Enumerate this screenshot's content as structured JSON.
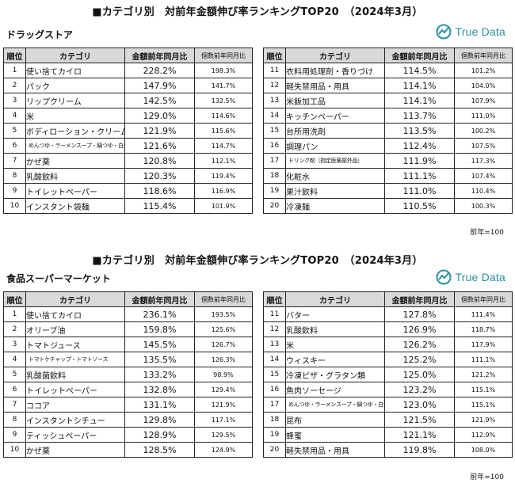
{
  "sections": [
    {
      "title": "■カテゴリ別　対前年金額伸び率ランキングTOP20　（2024年3月）",
      "category": "ドラッグストア",
      "brand": "True Data",
      "headers": {
        "rank": "順位",
        "category": "カテゴリ",
        "amount": "金額前年同月比",
        "count": "個数前年同月比"
      },
      "rows_left": [
        {
          "rank": "1",
          "name": "使い捨てカイロ",
          "amount": "228.2%",
          "count": "198.3%"
        },
        {
          "rank": "2",
          "name": "パック",
          "amount": "147.9%",
          "count": "141.7%"
        },
        {
          "rank": "3",
          "name": "リップクリーム",
          "amount": "142.5%",
          "count": "132.5%"
        },
        {
          "rank": "4",
          "name": "米",
          "amount": "129.0%",
          "count": "114.6%"
        },
        {
          "rank": "5",
          "name": "ボディローション・クリーム",
          "amount": "121.9%",
          "count": "115.6%"
        },
        {
          "rank": "6",
          "name": "めんつゆ・ラーメンスープ・鍋つゆ・白だし",
          "amount": "121.6%",
          "count": "114.7%",
          "tiny": true
        },
        {
          "rank": "7",
          "name": "かぜ薬",
          "amount": "120.8%",
          "count": "112.1%"
        },
        {
          "rank": "8",
          "name": "乳酸飲料",
          "amount": "120.3%",
          "count": "119.4%"
        },
        {
          "rank": "9",
          "name": "トイレットペーパー",
          "amount": "118.6%",
          "count": "116.9%"
        },
        {
          "rank": "10",
          "name": "インスタント袋麺",
          "amount": "115.4%",
          "count": "101.9%"
        }
      ],
      "rows_right": [
        {
          "rank": "11",
          "name": "衣料用処理剤・香りづけ",
          "amount": "114.5%",
          "count": "101.2%"
        },
        {
          "rank": "12",
          "name": "軽失禁用品・用具",
          "amount": "114.1%",
          "count": "104.0%"
        },
        {
          "rank": "13",
          "name": "米飯加工品",
          "amount": "114.1%",
          "count": "107.9%"
        },
        {
          "rank": "14",
          "name": "キッチンペーパー",
          "amount": "113.7%",
          "count": "111.0%"
        },
        {
          "rank": "15",
          "name": "台所用洗剤",
          "amount": "113.5%",
          "count": "100.2%"
        },
        {
          "rank": "16",
          "name": "調理パン",
          "amount": "112.4%",
          "count": "107.5%"
        },
        {
          "rank": "17",
          "name": "ドリンク剤（指定医薬部外品）",
          "amount": "111.9%",
          "count": "117.3%",
          "tiny": true
        },
        {
          "rank": "18",
          "name": "化粧水",
          "amount": "111.1%",
          "count": "107.4%"
        },
        {
          "rank": "19",
          "name": "果汁飲料",
          "amount": "111.0%",
          "count": "110.4%"
        },
        {
          "rank": "20",
          "name": "冷凍麺",
          "amount": "110.5%",
          "count": "100.3%"
        }
      ],
      "note": "前年=100"
    },
    {
      "title": "■カテゴリ別　対前年金額伸び率ランキングTOP20　（2024年3月）",
      "category": "食品スーパーマーケット",
      "brand": "True Data",
      "headers": {
        "rank": "順位",
        "category": "カテゴリ",
        "amount": "金額前年同月比",
        "count": "個数前年同月比"
      },
      "rows_left": [
        {
          "rank": "1",
          "name": "使い捨てカイロ",
          "amount": "236.1%",
          "count": "193.5%"
        },
        {
          "rank": "2",
          "name": "オリーブ油",
          "amount": "159.8%",
          "count": "125.6%"
        },
        {
          "rank": "3",
          "name": "トマトジュース",
          "amount": "145.5%",
          "count": "126.7%"
        },
        {
          "rank": "4",
          "name": "トマトケチャップ・トマトソース",
          "amount": "135.5%",
          "count": "126.3%",
          "tiny": true
        },
        {
          "rank": "5",
          "name": "乳酸菌飲料",
          "amount": "133.2%",
          "count": "98.9%"
        },
        {
          "rank": "6",
          "name": "トイレットペーパー",
          "amount": "132.8%",
          "count": "129.4%"
        },
        {
          "rank": "7",
          "name": "ココア",
          "amount": "131.1%",
          "count": "121.9%"
        },
        {
          "rank": "8",
          "name": "インスタントシチュー",
          "amount": "129.8%",
          "count": "117.1%"
        },
        {
          "rank": "9",
          "name": "ティッシュペーパー",
          "amount": "128.9%",
          "count": "129.5%"
        },
        {
          "rank": "10",
          "name": "かぜ薬",
          "amount": "128.5%",
          "count": "124.9%"
        }
      ],
      "rows_right": [
        {
          "rank": "11",
          "name": "バター",
          "amount": "127.8%",
          "count": "111.4%"
        },
        {
          "rank": "12",
          "name": "乳酸飲料",
          "amount": "126.9%",
          "count": "118.7%"
        },
        {
          "rank": "13",
          "name": "米",
          "amount": "126.2%",
          "count": "117.9%"
        },
        {
          "rank": "14",
          "name": "ウィスキー",
          "amount": "125.2%",
          "count": "111.1%"
        },
        {
          "rank": "15",
          "name": "冷凍ピザ・グラタン類",
          "amount": "125.0%",
          "count": "121.2%"
        },
        {
          "rank": "16",
          "name": "魚肉ソーセージ",
          "amount": "123.2%",
          "count": "115.1%"
        },
        {
          "rank": "17",
          "name": "めんつゆ・ラーメンスープ・鍋つゆ・白だし",
          "amount": "123.0%",
          "count": "115.1%",
          "tiny": true
        },
        {
          "rank": "18",
          "name": "昆布",
          "amount": "121.5%",
          "count": "121.9%"
        },
        {
          "rank": "19",
          "name": "蜂蜜",
          "amount": "121.1%",
          "count": "112.9%"
        },
        {
          "rank": "20",
          "name": "軽失禁用品・用具",
          "amount": "119.8%",
          "count": "108.0%"
        }
      ],
      "note": "前年=100"
    }
  ],
  "colors": {
    "brand": "#2a8fa3",
    "header_bg": "#d9d9d9",
    "border": "#222222"
  }
}
